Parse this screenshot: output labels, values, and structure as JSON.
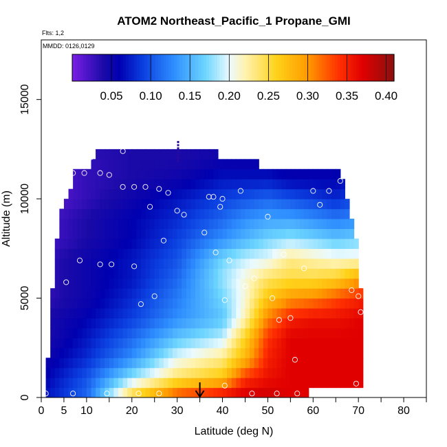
{
  "chart_data": {
    "type": "heatmap",
    "title": "ATOM2 Northeast_Pacific_1 Propane_GMI",
    "flights_label": "Flts: 1,2",
    "dates_label": "MMDD: 0126,0129",
    "xlabel": "Latitude (deg N)",
    "ylabel": "Altitude (m)",
    "xlim": [
      0,
      85
    ],
    "ylim": [
      0,
      18000
    ],
    "x_ticks": [
      0,
      5,
      10,
      20,
      30,
      40,
      50,
      60,
      70,
      80
    ],
    "y_ticks": [
      0,
      5000,
      10000,
      15000
    ],
    "colorbar": {
      "range": [
        0.0,
        0.41
      ],
      "ticks": [
        0.05,
        0.1,
        0.15,
        0.2,
        0.25,
        0.3,
        0.35,
        0.4
      ],
      "tick_labels": [
        "0.05",
        "0.10",
        "0.15",
        "0.20",
        "0.25",
        "0.30",
        "0.35",
        "0.40"
      ],
      "stops": [
        {
          "value": 0.0,
          "color": "#7a1fe6"
        },
        {
          "value": 0.04,
          "color": "#1a0aa8"
        },
        {
          "value": 0.06,
          "color": "#0000b0"
        },
        {
          "value": 0.09,
          "color": "#0b3fe0"
        },
        {
          "value": 0.13,
          "color": "#2f8fff"
        },
        {
          "value": 0.17,
          "color": "#6ed6ff"
        },
        {
          "value": 0.2,
          "color": "#eafaff"
        },
        {
          "value": 0.22,
          "color": "#fff3b0"
        },
        {
          "value": 0.26,
          "color": "#ffd21a"
        },
        {
          "value": 0.3,
          "color": "#ff9a00"
        },
        {
          "value": 0.34,
          "color": "#ff3000"
        },
        {
          "value": 0.37,
          "color": "#e00000"
        },
        {
          "value": 0.41,
          "color": "#8a1010"
        }
      ]
    },
    "field_lat_range": [
      1,
      71
    ],
    "field_alt_range": [
      0,
      13000
    ],
    "field_step": {
      "lat": 1,
      "alt": 500
    },
    "field_top_altitude": [
      [
        1,
        400
      ],
      [
        2,
        4000
      ],
      [
        3,
        6500
      ],
      [
        4,
        9000
      ],
      [
        6,
        10000
      ],
      [
        7,
        11300
      ],
      [
        11,
        11300
      ],
      [
        12,
        12400
      ],
      [
        30,
        12400
      ],
      [
        31,
        13000
      ],
      [
        31.5,
        12400
      ],
      [
        39,
        12400
      ],
      [
        40,
        11800
      ],
      [
        48,
        11800
      ],
      [
        49,
        11300
      ],
      [
        66,
        11300
      ],
      [
        67,
        10300
      ],
      [
        68,
        9400
      ],
      [
        69,
        8600
      ],
      [
        70,
        7200
      ],
      [
        70.5,
        5400
      ],
      [
        71,
        4200
      ],
      [
        71,
        2400
      ],
      [
        71,
        500
      ]
    ],
    "field_bottom_altitude": [
      [
        1,
        0
      ],
      [
        56,
        0
      ],
      [
        57,
        200
      ],
      [
        71,
        500
      ]
    ],
    "field_anchors": {
      "description": "propane mixing ratio (ppbv) estimated at lat/alt grid anchors",
      "lat": [
        1,
        10,
        20,
        30,
        40,
        45,
        50,
        55,
        60,
        65,
        71
      ],
      "alt": [
        0,
        1000,
        2000,
        3000,
        4000,
        5000,
        6000,
        7000,
        8000,
        9000,
        10000,
        11000,
        12000,
        13000
      ],
      "values": [
        [
          0.07,
          0.11,
          0.26,
          0.34,
          0.37,
          0.38,
          0.38,
          0.37,
          0.37,
          0.37,
          0.37
        ],
        [
          0.06,
          0.1,
          0.18,
          0.24,
          0.27,
          0.34,
          0.36,
          0.37,
          0.37,
          0.37,
          0.37
        ],
        [
          0.05,
          0.08,
          0.13,
          0.2,
          0.23,
          0.28,
          0.35,
          0.37,
          0.37,
          0.37,
          0.37
        ],
        [
          0.04,
          0.07,
          0.11,
          0.16,
          0.19,
          0.26,
          0.34,
          0.37,
          0.37,
          0.37,
          0.37
        ],
        [
          0.04,
          0.06,
          0.09,
          0.13,
          0.16,
          0.22,
          0.31,
          0.35,
          0.36,
          0.36,
          0.37
        ],
        [
          0.03,
          0.05,
          0.08,
          0.12,
          0.17,
          0.21,
          0.27,
          0.3,
          0.31,
          0.33,
          0.35
        ],
        [
          0.03,
          0.05,
          0.07,
          0.11,
          0.18,
          0.21,
          0.24,
          0.25,
          0.25,
          0.26,
          0.3
        ],
        [
          0.03,
          0.05,
          0.07,
          0.1,
          0.17,
          0.19,
          0.2,
          0.23,
          0.22,
          0.21,
          0.21
        ],
        [
          0.02,
          0.04,
          0.06,
          0.09,
          0.13,
          0.15,
          0.17,
          0.18,
          0.17,
          0.16,
          0.17
        ],
        [
          0.02,
          0.04,
          0.06,
          0.08,
          0.11,
          0.13,
          0.14,
          0.14,
          0.13,
          0.12,
          0.13
        ],
        [
          0.01,
          0.03,
          0.05,
          0.07,
          0.09,
          0.1,
          0.11,
          0.1,
          0.09,
          0.08,
          0.1
        ],
        [
          0.01,
          0.03,
          0.04,
          0.05,
          0.07,
          0.07,
          0.07,
          0.06,
          0.06,
          0.06,
          0.08
        ],
        [
          0.02,
          0.03,
          0.04,
          0.04,
          0.05,
          0.05,
          0.05,
          0.05,
          0.05,
          0.05,
          0.06
        ],
        [
          0.03,
          0.04,
          0.04,
          0.04,
          0.04,
          0.04,
          0.04,
          0.04,
          0.04,
          0.04,
          0.04
        ]
      ]
    },
    "sample_points": [
      [
        1,
        200
      ],
      [
        2,
        6400
      ],
      [
        2,
        6600
      ],
      [
        4,
        11300
      ],
      [
        4.5,
        11300
      ],
      [
        5.5,
        5800
      ],
      [
        7,
        200
      ],
      [
        7,
        11300
      ],
      [
        8.5,
        6900
      ],
      [
        9.5,
        11300
      ],
      [
        11,
        12100
      ],
      [
        13,
        11300
      ],
      [
        13,
        6700
      ],
      [
        14.5,
        200
      ],
      [
        15,
        11200
      ],
      [
        15.5,
        6700
      ],
      [
        18,
        12400
      ],
      [
        18,
        10600
      ],
      [
        20.5,
        6600
      ],
      [
        20.5,
        10600
      ],
      [
        21.5,
        200
      ],
      [
        22,
        4700
      ],
      [
        23,
        10600
      ],
      [
        24,
        9600
      ],
      [
        25,
        5100
      ],
      [
        26,
        200
      ],
      [
        26,
        10500
      ],
      [
        27,
        7900
      ],
      [
        28,
        10300
      ],
      [
        30,
        9400
      ],
      [
        31.5,
        9200
      ],
      [
        36,
        8300
      ],
      [
        37,
        10100
      ],
      [
        38,
        10100
      ],
      [
        38.5,
        7300
      ],
      [
        39.5,
        9600
      ],
      [
        40,
        10000
      ],
      [
        40.5,
        4900
      ],
      [
        40.5,
        600
      ],
      [
        41.5,
        6900
      ],
      [
        44,
        10400
      ],
      [
        45,
        5600
      ],
      [
        46.5,
        200
      ],
      [
        47,
        6000
      ],
      [
        50,
        9100
      ],
      [
        51,
        5000
      ],
      [
        52,
        200
      ],
      [
        52.5,
        3900
      ],
      [
        53.5,
        7200
      ],
      [
        55,
        4000
      ],
      [
        56,
        1900
      ],
      [
        56.5,
        200
      ],
      [
        58,
        6500
      ],
      [
        60,
        10400
      ],
      [
        61.5,
        9700
      ],
      [
        63.5,
        10400
      ],
      [
        66,
        10900
      ],
      [
        68.5,
        5400
      ],
      [
        69.5,
        700
      ],
      [
        70,
        5100
      ],
      [
        70.5,
        4300
      ]
    ],
    "marker": {
      "label": "arrow",
      "latitude": 35
    },
    "vertical_profile_marker": {
      "latitude": 30.2,
      "alt_range": [
        11900,
        13000
      ]
    }
  }
}
